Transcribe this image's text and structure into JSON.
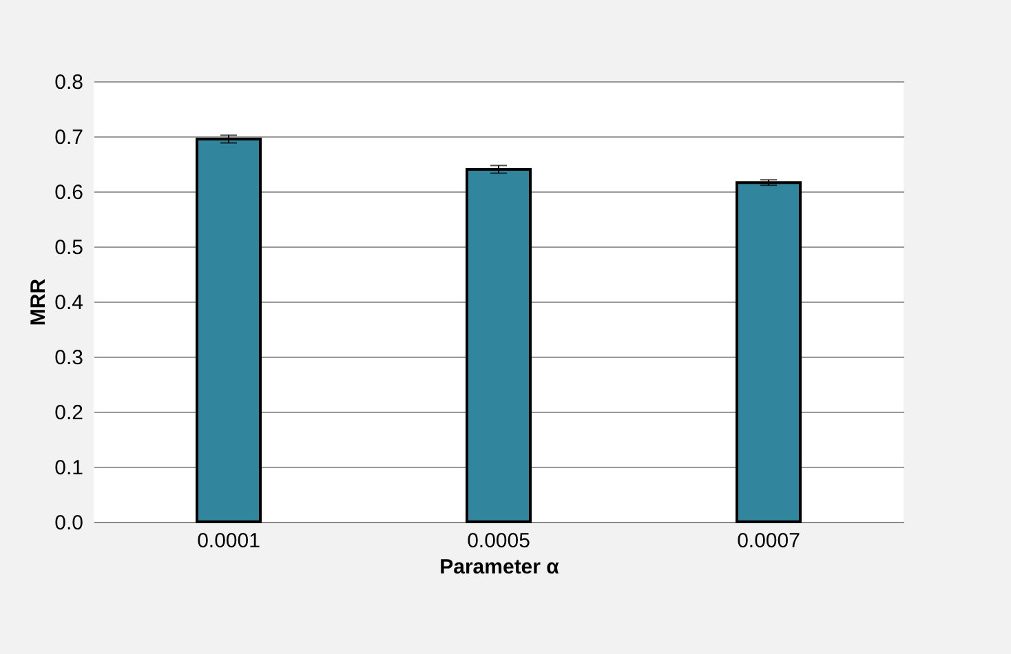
{
  "chart_data": {
    "type": "bar",
    "xlabel": "Parameter α",
    "ylabel": "MRR",
    "categories": [
      "0.0001",
      "0.0005",
      "0.0007"
    ],
    "values": [
      0.695,
      0.64,
      0.616
    ],
    "errors": [
      0.007,
      0.007,
      0.005
    ],
    "color": "#31859c",
    "ylim": [
      0,
      0.8
    ],
    "yticks": [
      {
        "value": 0,
        "label": "0.0"
      },
      {
        "value": 0.1,
        "label": "0.1"
      },
      {
        "value": 0.2,
        "label": "0.2"
      },
      {
        "value": 0.3,
        "label": "0.3"
      },
      {
        "value": 0.4,
        "label": "0.4"
      },
      {
        "value": 0.5,
        "label": "0.5"
      },
      {
        "value": 0.6,
        "label": "0.6"
      },
      {
        "value": 0.7,
        "label": "0.7"
      },
      {
        "value": 0.8,
        "label": "0.8"
      }
    ],
    "grid": "y"
  }
}
